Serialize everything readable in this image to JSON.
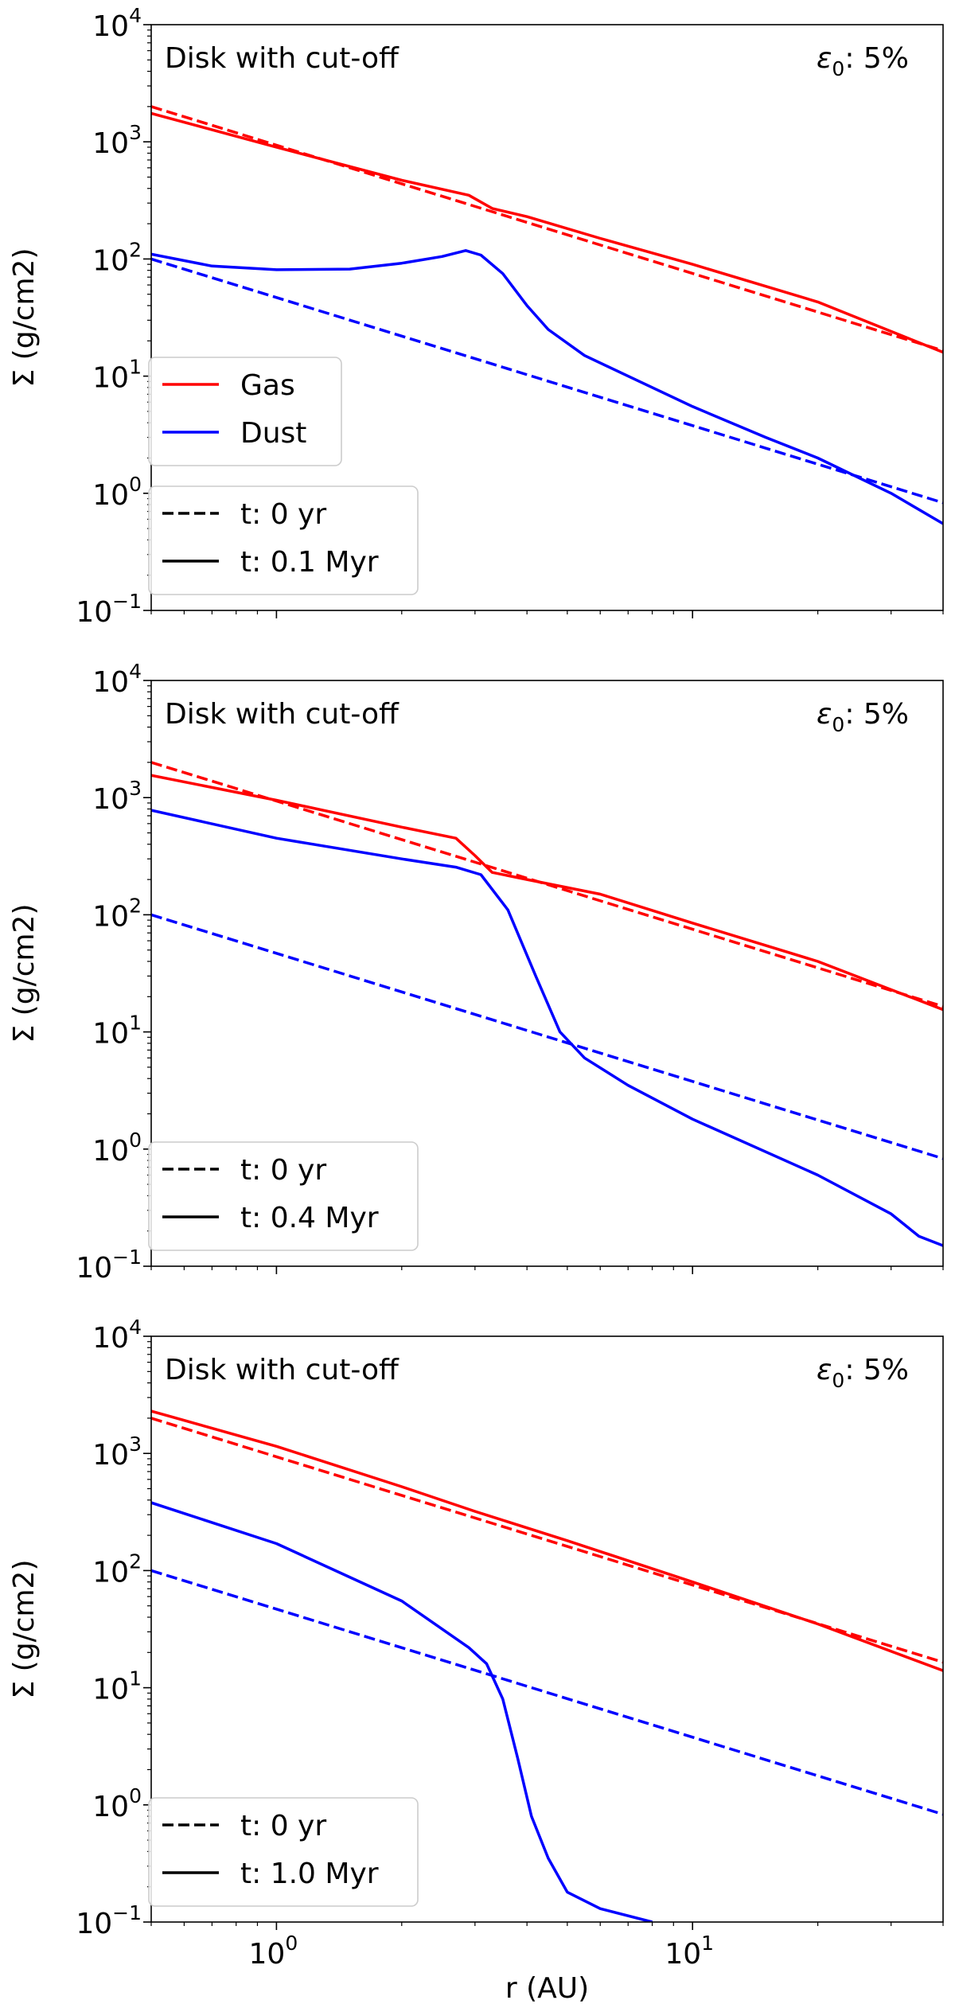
{
  "chart_data": [
    {
      "type": "line",
      "panel_label": "Disk with cut-off",
      "epsilon_label": {
        "symbol": "ε",
        "sub": "0",
        "rest": ": 5%"
      },
      "ylabel": "Σ (g/cm2)",
      "xlabel": "",
      "xscale": "log",
      "yscale": "log",
      "xlim": [
        0.5,
        40
      ],
      "ylim": [
        0.1,
        10000
      ],
      "grid": false,
      "legends": [
        {
          "position": "middle-left",
          "entries": [
            {
              "label": "Gas",
              "color": "#ff0000",
              "style": "solid"
            },
            {
              "label": "Dust",
              "color": "#0000ff",
              "style": "solid"
            }
          ]
        },
        {
          "position": "lower-left",
          "entries": [
            {
              "label": "t: 0 yr",
              "color": "#000000",
              "style": "dashed"
            },
            {
              "label": "t: 0.1 Myr",
              "color": "#000000",
              "style": "solid"
            }
          ]
        }
      ],
      "series": [
        {
          "name": "Gas",
          "time": "t: 0 yr",
          "color": "#ff0000",
          "style": "dashed",
          "points": [
            [
              0.5,
              2000
            ],
            [
              40,
              16.5
            ]
          ]
        },
        {
          "name": "Dust",
          "time": "t: 0 yr",
          "color": "#0000ff",
          "style": "dashed",
          "points": [
            [
              0.5,
              100
            ],
            [
              40,
              0.83
            ]
          ]
        },
        {
          "name": "Gas",
          "time": "t: 0.1 Myr",
          "color": "#ff0000",
          "style": "solid",
          "points": [
            [
              0.5,
              1750
            ],
            [
              1,
              900
            ],
            [
              2,
              470
            ],
            [
              2.9,
              350
            ],
            [
              3.3,
              270
            ],
            [
              4,
              230
            ],
            [
              6,
              150
            ],
            [
              10,
              90
            ],
            [
              20,
              43
            ],
            [
              40,
              16
            ]
          ]
        },
        {
          "name": "Dust",
          "time": "t: 0.1 Myr",
          "color": "#0000ff",
          "style": "solid",
          "points": [
            [
              0.5,
              110
            ],
            [
              0.7,
              87
            ],
            [
              1,
              81
            ],
            [
              1.5,
              82
            ],
            [
              2,
              92
            ],
            [
              2.5,
              105
            ],
            [
              2.85,
              118
            ],
            [
              3.1,
              108
            ],
            [
              3.5,
              75
            ],
            [
              4,
              40
            ],
            [
              4.5,
              25
            ],
            [
              5.5,
              15
            ],
            [
              7,
              10
            ],
            [
              10,
              5.5
            ],
            [
              15,
              3
            ],
            [
              20,
              2
            ],
            [
              30,
              1
            ],
            [
              40,
              0.55
            ]
          ]
        }
      ],
      "tick_labels": {
        "y": [
          {
            "base": "10",
            "exp": "4"
          },
          {
            "base": "10",
            "exp": "3"
          },
          {
            "base": "10",
            "exp": "2"
          },
          {
            "base": "10",
            "exp": "1"
          },
          {
            "base": "10",
            "exp": "0"
          },
          {
            "base": "10",
            "exp": "−1"
          }
        ],
        "x": []
      }
    },
    {
      "type": "line",
      "panel_label": "Disk with cut-off",
      "epsilon_label": {
        "symbol": "ε",
        "sub": "0",
        "rest": ": 5%"
      },
      "ylabel": "Σ (g/cm2)",
      "xlabel": "",
      "xscale": "log",
      "yscale": "log",
      "xlim": [
        0.5,
        40
      ],
      "ylim": [
        0.1,
        10000
      ],
      "grid": false,
      "legends": [
        {
          "position": "lower-left",
          "entries": [
            {
              "label": "t: 0 yr",
              "color": "#000000",
              "style": "dashed"
            },
            {
              "label": "t: 0.4 Myr",
              "color": "#000000",
              "style": "solid"
            }
          ]
        }
      ],
      "series": [
        {
          "name": "Gas",
          "time": "t: 0 yr",
          "color": "#ff0000",
          "style": "dashed",
          "points": [
            [
              0.5,
              2000
            ],
            [
              40,
              16.5
            ]
          ]
        },
        {
          "name": "Dust",
          "time": "t: 0 yr",
          "color": "#0000ff",
          "style": "dashed",
          "points": [
            [
              0.5,
              100
            ],
            [
              40,
              0.83
            ]
          ]
        },
        {
          "name": "Gas",
          "time": "t: 0.4 Myr",
          "color": "#ff0000",
          "style": "solid",
          "points": [
            [
              0.5,
              1550
            ],
            [
              1,
              950
            ],
            [
              2,
              560
            ],
            [
              2.7,
              450
            ],
            [
              3,
              320
            ],
            [
              3.3,
              230
            ],
            [
              4,
              200
            ],
            [
              6,
              150
            ],
            [
              10,
              85
            ],
            [
              20,
              40
            ],
            [
              40,
              15.5
            ]
          ]
        },
        {
          "name": "Dust",
          "time": "t: 0.4 Myr",
          "color": "#0000ff",
          "style": "solid",
          "points": [
            [
              0.5,
              780
            ],
            [
              1,
              450
            ],
            [
              2,
              300
            ],
            [
              2.7,
              255
            ],
            [
              3.1,
              220
            ],
            [
              3.6,
              110
            ],
            [
              4.2,
              30
            ],
            [
              4.8,
              10
            ],
            [
              5.5,
              6
            ],
            [
              7,
              3.5
            ],
            [
              10,
              1.8
            ],
            [
              20,
              0.6
            ],
            [
              30,
              0.28
            ],
            [
              35,
              0.18
            ],
            [
              40,
              0.15
            ]
          ]
        }
      ],
      "tick_labels": {
        "y": [
          {
            "base": "10",
            "exp": "4"
          },
          {
            "base": "10",
            "exp": "3"
          },
          {
            "base": "10",
            "exp": "2"
          },
          {
            "base": "10",
            "exp": "1"
          },
          {
            "base": "10",
            "exp": "0"
          },
          {
            "base": "10",
            "exp": "−1"
          }
        ],
        "x": []
      }
    },
    {
      "type": "line",
      "panel_label": "Disk with cut-off",
      "epsilon_label": {
        "symbol": "ε",
        "sub": "0",
        "rest": ": 5%"
      },
      "ylabel": "Σ (g/cm2)",
      "xlabel": "r (AU)",
      "xscale": "log",
      "yscale": "log",
      "xlim": [
        0.5,
        40
      ],
      "ylim": [
        0.1,
        10000
      ],
      "grid": false,
      "legends": [
        {
          "position": "lower-left",
          "entries": [
            {
              "label": "t: 0 yr",
              "color": "#000000",
              "style": "dashed"
            },
            {
              "label": "t: 1.0 Myr",
              "color": "#000000",
              "style": "solid"
            }
          ]
        }
      ],
      "series": [
        {
          "name": "Gas",
          "time": "t: 0 yr",
          "color": "#ff0000",
          "style": "dashed",
          "points": [
            [
              0.5,
              2000
            ],
            [
              40,
              16.5
            ]
          ]
        },
        {
          "name": "Dust",
          "time": "t: 0 yr",
          "color": "#0000ff",
          "style": "dashed",
          "points": [
            [
              0.5,
              100
            ],
            [
              40,
              0.83
            ]
          ]
        },
        {
          "name": "Gas",
          "time": "t: 1.0 Myr",
          "color": "#ff0000",
          "style": "solid",
          "points": [
            [
              0.5,
              2300
            ],
            [
              1,
              1150
            ],
            [
              2,
              520
            ],
            [
              3,
              320
            ],
            [
              5,
              180
            ],
            [
              10,
              80
            ],
            [
              20,
              35
            ],
            [
              40,
              14
            ]
          ]
        },
        {
          "name": "Dust",
          "time": "t: 1.0 Myr",
          "color": "#0000ff",
          "style": "solid",
          "points": [
            [
              0.5,
              380
            ],
            [
              1,
              170
            ],
            [
              2,
              55
            ],
            [
              2.9,
              22
            ],
            [
              3.2,
              16
            ],
            [
              3.5,
              8
            ],
            [
              3.8,
              2.5
            ],
            [
              4.1,
              0.8
            ],
            [
              4.5,
              0.35
            ],
            [
              5,
              0.18
            ],
            [
              6,
              0.13
            ],
            [
              8,
              0.1
            ]
          ]
        }
      ],
      "tick_labels": {
        "y": [
          {
            "base": "10",
            "exp": "4"
          },
          {
            "base": "10",
            "exp": "3"
          },
          {
            "base": "10",
            "exp": "2"
          },
          {
            "base": "10",
            "exp": "1"
          },
          {
            "base": "10",
            "exp": "0"
          },
          {
            "base": "10",
            "exp": "−1"
          }
        ],
        "x": [
          {
            "base": "10",
            "exp": "0"
          },
          {
            "base": "10",
            "exp": "1"
          }
        ]
      }
    }
  ]
}
